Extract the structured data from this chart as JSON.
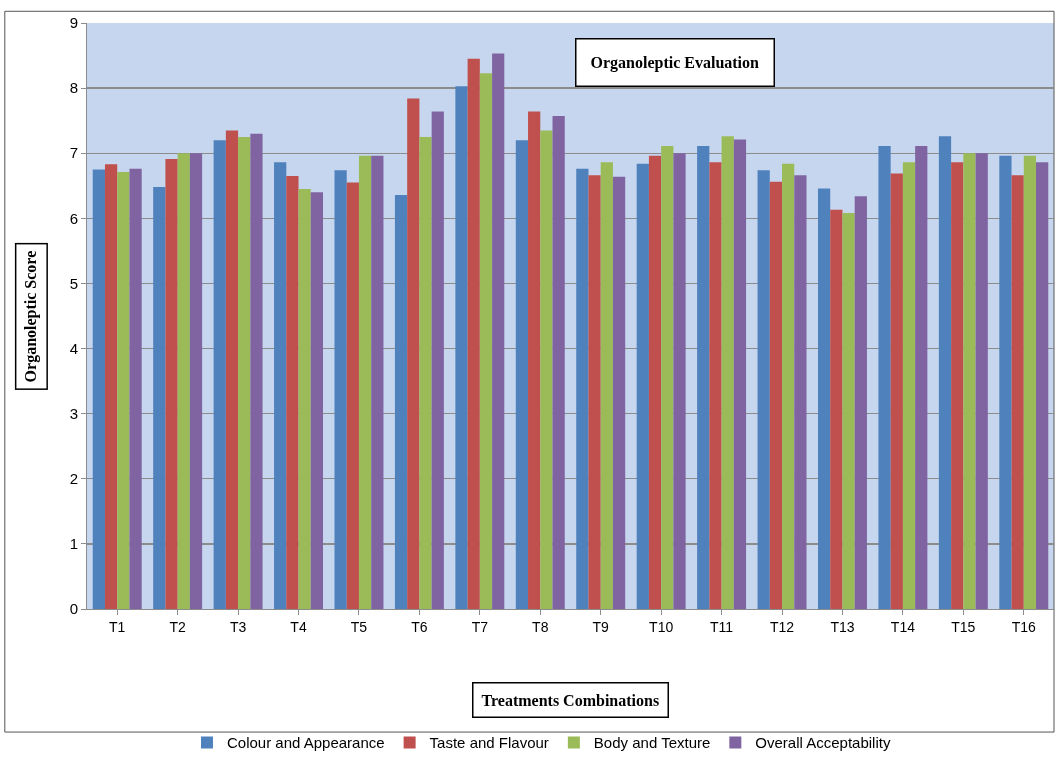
{
  "chart_data": {
    "type": "bar",
    "title": "Organoleptic Evaluation",
    "xlabel": "Treatments Combinations",
    "ylabel": "Organoleptic Score",
    "categories": [
      "T1",
      "T2",
      "T3",
      "T4",
      "T5",
      "T6",
      "T7",
      "T8",
      "T9",
      "T10",
      "T11",
      "T12",
      "T13",
      "T14",
      "T15",
      "T16"
    ],
    "series": [
      {
        "name": "Colour and Appearance",
        "color": "#4f81bd",
        "values": [
          6.75,
          6.48,
          7.2,
          6.86,
          6.74,
          6.36,
          8.03,
          7.2,
          6.76,
          6.84,
          7.11,
          6.74,
          6.46,
          7.11,
          7.26,
          6.96
        ]
      },
      {
        "name": "Taste and Flavour",
        "color": "#c0504d",
        "values": [
          6.83,
          6.91,
          7.35,
          6.65,
          6.55,
          7.84,
          8.45,
          7.64,
          6.66,
          6.96,
          6.86,
          6.56,
          6.13,
          6.69,
          6.86,
          6.66
        ]
      },
      {
        "name": "Body and Texture",
        "color": "#9bbb59",
        "values": [
          6.71,
          7.0,
          7.25,
          6.45,
          6.96,
          7.25,
          8.23,
          7.35,
          6.86,
          7.11,
          7.26,
          6.84,
          6.08,
          6.86,
          7.0,
          6.96
        ]
      },
      {
        "name": "Overall Acceptability",
        "color": "#8064a2",
        "values": [
          6.76,
          7.0,
          7.3,
          6.4,
          6.96,
          7.64,
          8.53,
          7.57,
          6.64,
          7.0,
          7.21,
          6.66,
          6.34,
          7.11,
          7.0,
          6.86
        ]
      }
    ],
    "ylim": [
      0,
      9
    ],
    "yticks": [
      0,
      1,
      2,
      3,
      4,
      5,
      6,
      7,
      8,
      9
    ],
    "grid": "y",
    "legend": "bottom"
  }
}
